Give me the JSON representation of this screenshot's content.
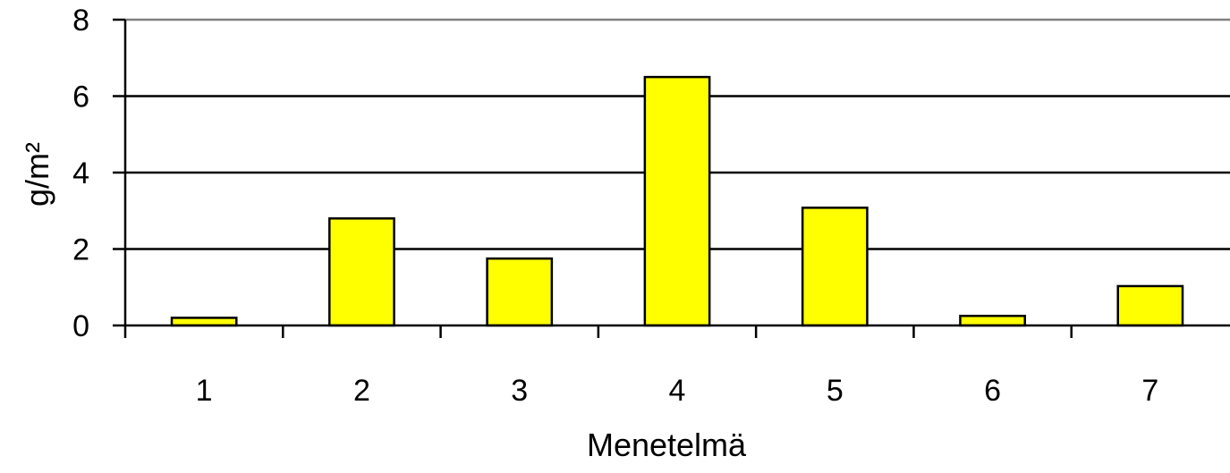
{
  "chart_data": {
    "type": "bar",
    "categories": [
      "1",
      "2",
      "3",
      "4",
      "5",
      "6",
      "7"
    ],
    "values": [
      0.2,
      2.8,
      1.75,
      6.5,
      3.08,
      0.25,
      1.03
    ],
    "title": "",
    "xlabel": "Menetelmä",
    "ylabel": "g/m²",
    "ylim": [
      0,
      8
    ],
    "yticks": [
      "0",
      "2",
      "4",
      "6",
      "8"
    ],
    "grid": true,
    "legend": "none",
    "colors": {
      "bar_fill": "#ffff00",
      "bar_stroke": "#000000",
      "grid": "#000000",
      "frame_top": "#808080"
    }
  }
}
